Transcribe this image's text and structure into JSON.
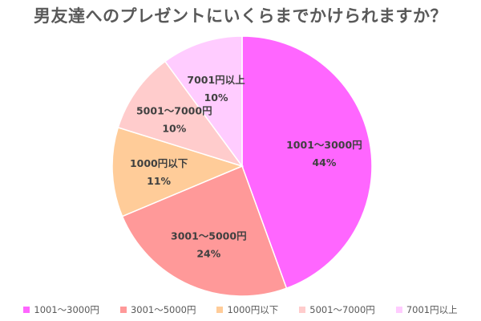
{
  "title": "男友達へのプレゼントにいくらまでかけられますか？",
  "chart_data": {
    "type": "pie",
    "start_angle_deg": 0,
    "direction": "clockwise",
    "legend_position": "bottom",
    "slices": [
      {
        "label": "1001〜3000円",
        "value": 44,
        "value_label": "44%",
        "color": "#ff66ff"
      },
      {
        "label": "3001〜5000円",
        "value": 24,
        "value_label": "24%",
        "color": "#ff9999"
      },
      {
        "label": "1000円以下",
        "value": 11,
        "value_label": "11%",
        "color": "#ffcc99"
      },
      {
        "label": "5001〜7000円",
        "value": 10,
        "value_label": "10%",
        "color": "#ffcccc"
      },
      {
        "label": "7001円以上",
        "value": 10,
        "value_label": "10%",
        "color": "#ffccff"
      }
    ]
  }
}
